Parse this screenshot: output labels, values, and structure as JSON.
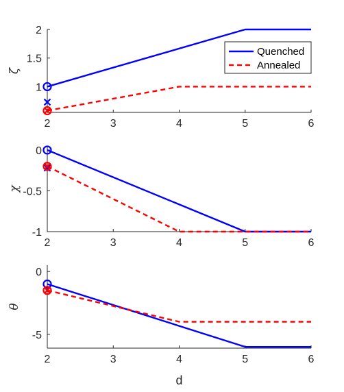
{
  "chart_data": [
    {
      "type": "line",
      "ylabel": "ζ",
      "xlabel": "",
      "xlim": [
        2,
        6
      ],
      "ylim": [
        0.55,
        2
      ],
      "xticks": [
        "2",
        "3",
        "4",
        "5",
        "6"
      ],
      "yticks": [
        "1",
        "1.5",
        "2"
      ],
      "ytick_values": [
        1,
        1.5,
        2
      ],
      "legend": {
        "placement": "top-right",
        "entries": [
          "Quenched",
          "Annealed"
        ]
      },
      "series": [
        {
          "name": "Quenched",
          "color": "#0000ff",
          "dash": "solid",
          "x": [
            2,
            5,
            6
          ],
          "y": [
            1.0,
            2.0,
            2.0
          ]
        },
        {
          "name": "Annealed",
          "color": "#ff0000",
          "dash": "dashed",
          "x": [
            2,
            4,
            6
          ],
          "y": [
            0.58,
            1.0,
            1.0
          ]
        }
      ],
      "markers": [
        {
          "shape": "circle",
          "color": "#0000ff",
          "x": 2,
          "y": 1.0
        },
        {
          "shape": "cross",
          "color": "#0000ff",
          "x": 2,
          "y": 0.73
        },
        {
          "shape": "circle",
          "color": "#ff0000",
          "x": 2,
          "y": 0.58
        },
        {
          "shape": "cross",
          "color": "#ff0000",
          "x": 2,
          "y": 0.58
        }
      ]
    },
    {
      "type": "line",
      "ylabel": "χ",
      "xlabel": "",
      "xlim": [
        2,
        6
      ],
      "ylim": [
        -1,
        0.05
      ],
      "xticks": [
        "2",
        "3",
        "4",
        "5",
        "6"
      ],
      "yticks": [
        "0",
        "-0.5",
        "-1"
      ],
      "ytick_values": [
        0,
        -0.5,
        -1
      ],
      "series": [
        {
          "name": "Quenched",
          "color": "#0000ff",
          "dash": "solid",
          "x": [
            2,
            5,
            6
          ],
          "y": [
            0,
            -1,
            -1
          ]
        },
        {
          "name": "Annealed",
          "color": "#ff0000",
          "dash": "dashed",
          "x": [
            2,
            4,
            6
          ],
          "y": [
            -0.2,
            -1,
            -1
          ]
        }
      ],
      "markers": [
        {
          "shape": "circle",
          "color": "#0000ff",
          "x": 2,
          "y": 0
        },
        {
          "shape": "cross",
          "color": "#0000ff",
          "x": 2,
          "y": -0.22
        },
        {
          "shape": "circle",
          "color": "#ff0000",
          "x": 2,
          "y": -0.2
        },
        {
          "shape": "cross",
          "color": "#ff0000",
          "x": 2,
          "y": -0.2
        }
      ]
    },
    {
      "type": "line",
      "ylabel": "θ",
      "xlabel": "d",
      "xlim": [
        2,
        6
      ],
      "ylim": [
        -6.1,
        0.5
      ],
      "xticks": [
        "2",
        "3",
        "4",
        "5",
        "6"
      ],
      "yticks": [
        "0",
        "-5"
      ],
      "ytick_values": [
        0,
        -5
      ],
      "series": [
        {
          "name": "Quenched",
          "color": "#0000ff",
          "dash": "solid",
          "x": [
            2,
            5,
            6
          ],
          "y": [
            -1,
            -6,
            -6
          ]
        },
        {
          "name": "Annealed",
          "color": "#ff0000",
          "dash": "dashed",
          "x": [
            2,
            4,
            6
          ],
          "y": [
            -1.5,
            -4,
            -4
          ]
        }
      ],
      "markers": [
        {
          "shape": "circle",
          "color": "#0000ff",
          "x": 2,
          "y": -1
        },
        {
          "shape": "circle",
          "color": "#ff0000",
          "x": 2,
          "y": -1.5
        },
        {
          "shape": "cross",
          "color": "#ff0000",
          "x": 2,
          "y": -1.5
        }
      ]
    }
  ]
}
